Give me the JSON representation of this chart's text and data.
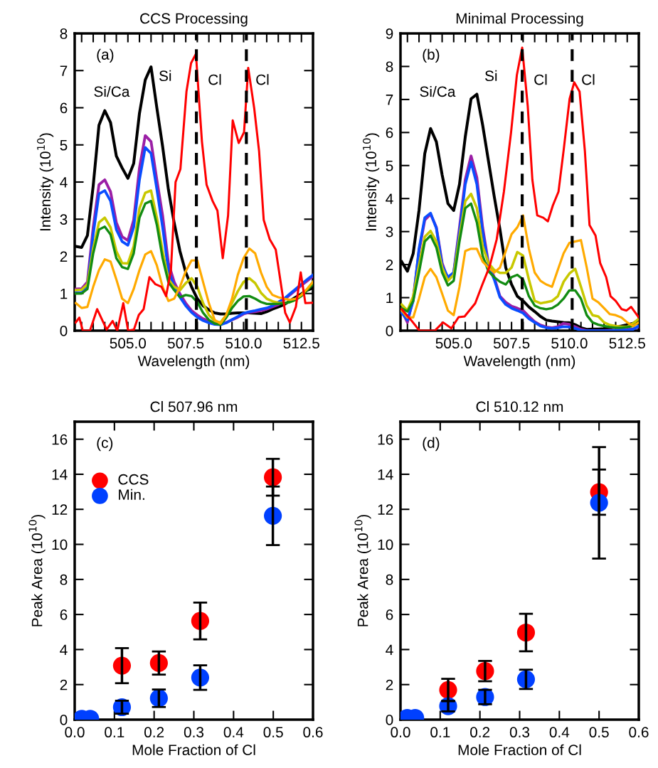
{
  "chart_data": [
    {
      "type": "line",
      "title": "CCS Processing",
      "xlabel": "Wavelength (nm)",
      "ylabel": "Intensity (10$^{10}$)",
      "xlim": [
        502.7,
        513.0
      ],
      "ylim": [
        0,
        8
      ],
      "xticks": [
        {
          "value": 503.0,
          "label": null
        },
        {
          "value": 503.5,
          "label": null
        },
        {
          "value": 504.0,
          "label": null
        },
        {
          "value": 504.5,
          "label": null
        },
        {
          "value": 505.0,
          "label": "505.0"
        },
        {
          "value": 505.5,
          "label": null
        },
        {
          "value": 506.0,
          "label": null
        },
        {
          "value": 506.5,
          "label": null
        },
        {
          "value": 507.0,
          "label": null
        },
        {
          "value": 507.5,
          "label": "507.5"
        },
        {
          "value": 508.0,
          "label": null
        },
        {
          "value": 508.5,
          "label": null
        },
        {
          "value": 509.0,
          "label": null
        },
        {
          "value": 509.5,
          "label": null
        },
        {
          "value": 510.0,
          "label": "510.0"
        },
        {
          "value": 510.5,
          "label": null
        },
        {
          "value": 511.0,
          "label": null
        },
        {
          "value": 511.5,
          "label": null
        },
        {
          "value": 512.0,
          "label": null
        },
        {
          "value": 512.5,
          "label": "512.5"
        }
      ],
      "yticks": [
        0,
        1,
        2,
        3,
        4,
        5,
        6,
        7,
        8
      ],
      "x": [
        502.75,
        503.0,
        503.25,
        503.5,
        503.75,
        504.0,
        504.25,
        504.5,
        504.75,
        505.0,
        505.25,
        505.5,
        505.75,
        506.0,
        506.25,
        506.5,
        506.75,
        507.0,
        507.25,
        507.5,
        507.75,
        508.0,
        508.25,
        508.5,
        508.75,
        509.0,
        509.25,
        509.5,
        509.75,
        510.0,
        510.25,
        510.5,
        510.75,
        511.0,
        511.25,
        511.5,
        511.75,
        512.0,
        512.25,
        512.5,
        512.75,
        513.0
      ],
      "series": [
        {
          "color": "#000000",
          "values": [
            2.27,
            2.24,
            2.56,
            3.9,
            5.53,
            5.92,
            5.6,
            4.7,
            4.38,
            4.1,
            4.5,
            5.85,
            6.75,
            7.1,
            6.0,
            4.96,
            3.8,
            2.9,
            2.14,
            1.57,
            1.18,
            0.86,
            0.67,
            0.56,
            0.48,
            0.45,
            0.45,
            0.47,
            0.48,
            0.48,
            0.48,
            0.47,
            0.46,
            0.51,
            0.58,
            0.64,
            0.7,
            0.8,
            0.9,
            0.99,
            1.09,
            1.15
          ]
        },
        {
          "color": "#9b1fa6",
          "values": [
            1.12,
            1.13,
            1.31,
            2.78,
            3.93,
            4.06,
            3.74,
            2.91,
            2.53,
            2.43,
            2.98,
            4.38,
            5.25,
            5.09,
            4.06,
            3.1,
            1.82,
            1.31,
            0.99,
            0.74,
            0.54,
            0.42,
            0.32,
            0.26,
            0.21,
            0.19,
            0.22,
            0.29,
            0.36,
            0.45,
            0.49,
            0.51,
            0.54,
            0.58,
            0.64,
            0.7,
            0.83,
            0.96,
            1.09,
            1.22,
            1.34,
            1.47
          ]
        },
        {
          "color": "#0a4dff",
          "values": [
            1.02,
            1.02,
            1.18,
            2.59,
            3.68,
            3.77,
            3.49,
            2.72,
            2.4,
            2.3,
            2.78,
            4.06,
            4.93,
            4.77,
            3.81,
            2.78,
            1.63,
            1.18,
            0.9,
            0.67,
            0.49,
            0.36,
            0.27,
            0.21,
            0.17,
            0.16,
            0.21,
            0.3,
            0.38,
            0.47,
            0.51,
            0.54,
            0.58,
            0.61,
            0.67,
            0.77,
            0.86,
            0.99,
            1.12,
            1.25,
            1.38,
            1.5
          ]
        },
        {
          "color": "#c8c800",
          "values": [
            1.09,
            1.1,
            1.25,
            2.21,
            2.91,
            3.04,
            2.78,
            2.14,
            1.82,
            1.81,
            2.27,
            3.29,
            3.71,
            3.77,
            3.04,
            2.14,
            1.38,
            1.18,
            1.09,
            1.28,
            1.41,
            1.18,
            0.74,
            0.42,
            0.26,
            0.22,
            0.42,
            0.74,
            1.06,
            1.31,
            1.41,
            1.28,
            1.02,
            0.86,
            0.79,
            0.75,
            0.74,
            0.77,
            0.83,
            0.96,
            1.12,
            1.31
          ]
        },
        {
          "color": "#128c12",
          "values": [
            1.0,
            1.0,
            1.12,
            2.08,
            2.72,
            2.8,
            2.59,
            1.95,
            1.71,
            1.66,
            2.08,
            3.04,
            3.42,
            3.49,
            2.85,
            1.95,
            1.31,
            1.09,
            0.9,
            0.96,
            0.93,
            0.77,
            0.48,
            0.29,
            0.19,
            0.16,
            0.35,
            0.61,
            0.8,
            0.92,
            0.93,
            0.86,
            0.77,
            0.72,
            0.72,
            0.72,
            0.74,
            0.77,
            0.83,
            0.93,
            1.09,
            1.25
          ]
        },
        {
          "color": "#ffaa00",
          "values": [
            0.74,
            0.61,
            0.64,
            1.18,
            1.63,
            1.92,
            1.86,
            1.38,
            0.86,
            0.74,
            1.12,
            1.63,
            2.05,
            2.14,
            1.76,
            1.18,
            0.8,
            0.86,
            1.18,
            1.6,
            1.89,
            1.89,
            1.31,
            0.74,
            0.29,
            0.19,
            0.42,
            0.86,
            1.5,
            1.95,
            2.21,
            2.08,
            1.57,
            1.18,
            0.96,
            0.9,
            0.86,
            0.83,
            0.86,
            0.96,
            1.12,
            1.31
          ]
        },
        {
          "color": "#ff0000",
          "x": [
            502.74,
            502.9,
            503.05,
            503.36,
            503.67,
            504.08,
            504.34,
            504.54,
            504.8,
            505.01,
            505.26,
            505.47,
            505.68,
            505.93,
            506.19,
            506.45,
            506.65,
            506.86,
            507.06,
            507.27,
            507.53,
            507.73,
            507.94,
            508.2,
            508.4,
            508.66,
            508.87,
            509.1,
            509.33,
            509.53,
            509.79,
            510.02,
            510.2,
            510.46,
            510.67,
            510.87,
            511.13,
            511.39,
            511.64,
            511.8,
            512.0,
            512.26,
            512.47,
            512.67,
            513.0
          ],
          "values": [
            0.22,
            0.35,
            0,
            0,
            0.58,
            0.03,
            0.26,
            0,
            0.74,
            0,
            0.03,
            0.42,
            0.58,
            1.44,
            1.25,
            1.18,
            0.93,
            1.63,
            4.0,
            4.35,
            6.43,
            7.2,
            7.45,
            5.09,
            3.93,
            3.49,
            3.23,
            1.95,
            3.1,
            5.66,
            5.05,
            5.34,
            7.07,
            5.98,
            4.83,
            2.98,
            2.46,
            2.18,
            1.15,
            0.48,
            0.22,
            0.64,
            1.57,
            0.74,
            0.75
          ]
        }
      ],
      "ref_lines": [
        {
          "axis": "x",
          "value": 507.96,
          "color": "#000000",
          "line_style": "dashed"
        },
        {
          "axis": "x",
          "value": 510.12,
          "color": "#000000",
          "line_style": "dashed"
        }
      ],
      "annotations": [
        "(a)",
        "Si/Ca",
        "Si",
        "Cl",
        "Cl"
      ]
    },
    {
      "type": "line",
      "title": "Minimal Processing",
      "xlabel": "Wavelength (nm)",
      "ylabel": "Intensity (10$^{10}$)",
      "xlim": [
        502.7,
        513.0
      ],
      "ylim": [
        0,
        9
      ],
      "xticks": [
        {
          "value": 503.0,
          "label": null
        },
        {
          "value": 503.5,
          "label": null
        },
        {
          "value": 504.0,
          "label": null
        },
        {
          "value": 504.5,
          "label": null
        },
        {
          "value": 505.0,
          "label": "505.0"
        },
        {
          "value": 505.5,
          "label": null
        },
        {
          "value": 506.0,
          "label": null
        },
        {
          "value": 506.5,
          "label": null
        },
        {
          "value": 507.0,
          "label": null
        },
        {
          "value": 507.5,
          "label": "507.5"
        },
        {
          "value": 508.0,
          "label": null
        },
        {
          "value": 508.5,
          "label": null
        },
        {
          "value": 509.0,
          "label": null
        },
        {
          "value": 509.5,
          "label": null
        },
        {
          "value": 510.0,
          "label": "510.0"
        },
        {
          "value": 510.5,
          "label": null
        },
        {
          "value": 511.0,
          "label": null
        },
        {
          "value": 511.5,
          "label": null
        },
        {
          "value": 512.0,
          "label": null
        },
        {
          "value": 512.5,
          "label": "512.5"
        }
      ],
      "yticks": [
        0,
        1,
        2,
        3,
        4,
        5,
        6,
        7,
        8,
        9
      ],
      "x": [
        502.75,
        503.0,
        503.25,
        503.5,
        503.75,
        504.0,
        504.25,
        504.5,
        504.75,
        505.0,
        505.25,
        505.5,
        505.75,
        506.0,
        506.25,
        506.5,
        506.75,
        507.0,
        507.25,
        507.5,
        507.75,
        508.0,
        508.25,
        508.5,
        508.75,
        509.0,
        509.25,
        509.5,
        509.75,
        510.0,
        510.25,
        510.5,
        510.75,
        511.0,
        511.25,
        511.5,
        511.75,
        512.0,
        512.25,
        512.5,
        512.75,
        513.0
      ],
      "series": [
        {
          "color": "#000000",
          "values": [
            2.09,
            1.8,
            2.34,
            3.64,
            5.36,
            6.12,
            5.72,
            4.72,
            3.85,
            3.64,
            4.43,
            5.87,
            7.02,
            7.16,
            6.23,
            5.15,
            4.07,
            3.06,
            1.91,
            1.4,
            1.04,
            0.9,
            0.72,
            0.58,
            0.43,
            0.32,
            0.29,
            0.27,
            0.25,
            0.24,
            0.18,
            0.09,
            0.04,
            0.05,
            0.05,
            0.06,
            0.08,
            0.11,
            0.14,
            0.18,
            0.22,
            0.32
          ]
        },
        {
          "color": "#9b1fa6",
          "values": [
            0.61,
            0.25,
            0.97,
            2.41,
            3.35,
            3.53,
            3.13,
            2.05,
            1.55,
            1.76,
            3.13,
            4.57,
            5.29,
            4.64,
            3.13,
            2.05,
            1.62,
            1.04,
            0.86,
            0.74,
            0.68,
            0.61,
            0.43,
            0.27,
            0.17,
            0.11,
            0.09,
            0.12,
            0.22,
            0.19,
            0.12,
            0.04,
            0,
            0,
            0,
            0,
            0.01,
            0.02,
            0.04,
            0.04,
            0.05,
            0.12
          ]
        },
        {
          "color": "#0a4dff",
          "values": [
            0.54,
            0.32,
            0.9,
            2.48,
            3.42,
            3.56,
            3.1,
            1.98,
            1.62,
            1.76,
            2.99,
            4.43,
            5.11,
            4.43,
            2.99,
            1.98,
            1.55,
            1.01,
            0.79,
            0.68,
            0.61,
            0.53,
            0.36,
            0.25,
            0.14,
            0.09,
            0.07,
            0.09,
            0.12,
            0.11,
            0.07,
            0.01,
            0,
            0,
            0,
            0,
            0,
            0.01,
            0.02,
            0.02,
            0.04,
            0.14
          ]
        },
        {
          "color": "#c8c800",
          "values": [
            0.79,
            0.61,
            1.04,
            1.98,
            2.84,
            3.02,
            2.7,
            1.91,
            1.51,
            1.69,
            2.84,
            3.92,
            4.14,
            3.71,
            2.56,
            2.05,
            1.84,
            1.75,
            1.75,
            1.91,
            2.38,
            2.27,
            1.55,
            0.9,
            0.83,
            0.86,
            0.9,
            1.04,
            1.48,
            1.73,
            1.87,
            1.33,
            0.76,
            0.47,
            0.43,
            0.25,
            0.17,
            0.14,
            0.12,
            0.12,
            0.22,
            0.36
          ]
        },
        {
          "color": "#128c12",
          "values": [
            0.68,
            0.58,
            0.9,
            1.76,
            2.7,
            2.88,
            2.52,
            1.76,
            1.37,
            1.51,
            2.7,
            3.71,
            3.85,
            3.28,
            2.27,
            1.8,
            1.62,
            1.48,
            1.4,
            1.62,
            1.69,
            1.55,
            1.04,
            0.76,
            0.68,
            0.65,
            0.68,
            0.79,
            0.97,
            1.22,
            1.22,
            0.97,
            0.47,
            0.25,
            0.18,
            0.14,
            0.11,
            0.09,
            0.09,
            0.11,
            0.14,
            0.25
          ]
        },
        {
          "color": "#ffaa00",
          "values": [
            0.61,
            0.4,
            0.4,
            0.97,
            1.62,
            1.87,
            1.62,
            1.12,
            0.61,
            0.47,
            1.33,
            2.41,
            2.48,
            2.48,
            2.09,
            1.91,
            1.76,
            1.91,
            2.41,
            2.92,
            3.13,
            3.49,
            2.48,
            1.76,
            1.51,
            1.4,
            1.33,
            1.84,
            2.34,
            2.66,
            2.7,
            2.74,
            1.91,
            0.97,
            0.86,
            0.68,
            0.5,
            0.47,
            0.4,
            0.25,
            0.14,
            0.25
          ]
        },
        {
          "color": "#ff0000",
          "x": [
            502.75,
            503.16,
            503.52,
            503.88,
            504.18,
            504.54,
            504.9,
            505.21,
            505.47,
            505.93,
            506.24,
            506.55,
            506.86,
            507.17,
            507.48,
            507.73,
            507.96,
            508.2,
            508.4,
            508.61,
            508.87,
            509.07,
            509.28,
            509.53,
            509.76,
            510.01,
            510.21,
            510.44,
            510.67,
            510.87,
            511.13,
            511.33,
            511.59,
            511.78,
            512.0,
            512.26,
            512.47,
            512.67,
            513.0
          ],
          "values": [
            0.65,
            0.32,
            0,
            0,
            0,
            0.25,
            0.07,
            0.41,
            0.43,
            0.83,
            1.4,
            1.94,
            2.77,
            4.21,
            6.01,
            7.74,
            8.57,
            6.8,
            4.57,
            3.49,
            3.42,
            3.31,
            3.78,
            4.21,
            5.51,
            7.02,
            7.52,
            7.24,
            5.44,
            3.2,
            2.88,
            2.05,
            1.62,
            1.04,
            0.9,
            0.65,
            0.61,
            0.72,
            0.4
          ]
        }
      ],
      "ref_lines": [
        {
          "axis": "x",
          "value": 507.96,
          "color": "#000000",
          "line_style": "dashed"
        },
        {
          "axis": "x",
          "value": 510.12,
          "color": "#000000",
          "line_style": "dashed"
        }
      ],
      "annotations": [
        "(b)",
        "Si/Ca",
        "Si",
        "Cl",
        "Cl"
      ]
    },
    {
      "type": "scatter",
      "title": "Cl 507.96 nm",
      "xlabel": "Mole Fraction of Cl",
      "ylabel": "Peak Area (10$^{10}$)",
      "xlim": [
        0,
        0.6
      ],
      "ylim": [
        0,
        17
      ],
      "xticks": [
        {
          "value": 0,
          "label": "0.0"
        },
        0.1,
        0.2,
        0.3,
        0.4,
        0.5,
        0.6
      ],
      "yticks": [
        0,
        2,
        4,
        6,
        8,
        10,
        12,
        14,
        16
      ],
      "marker": "circle",
      "legend": "top left",
      "series": [
        {
          "name": "CCS",
          "color": "#ff0000",
          "x": [
            0.119,
            0.212,
            0.316,
            0.499
          ],
          "values": [
            3.08,
            3.23,
            5.63,
            13.83
          ],
          "errors": [
            1.0,
            0.66,
            1.05,
            1.05
          ]
        },
        {
          "name": "Min.",
          "color": "#0040ff",
          "x": [
            0.018,
            0.039,
            0.119,
            0.212,
            0.316,
            0.499
          ],
          "values": [
            0.05,
            0.05,
            0.71,
            1.22,
            2.4,
            11.63
          ],
          "errors": [
            null,
            null,
            0.37,
            0.5,
            0.7,
            1.67
          ]
        }
      ],
      "annotations": [
        "(c)"
      ]
    },
    {
      "type": "scatter",
      "title": "Cl 510.12 nm",
      "xlabel": "Mole Fraction of Cl",
      "ylabel": "Peak Area (10$^{10}$)",
      "xlim": [
        0,
        0.6
      ],
      "ylim": [
        0,
        17
      ],
      "xticks": [
        {
          "value": 0,
          "label": "0.0"
        },
        0.1,
        0.2,
        0.3,
        0.4,
        0.5,
        0.6
      ],
      "yticks": [
        0,
        2,
        4,
        6,
        8,
        10,
        12,
        14,
        16
      ],
      "marker": "circle",
      "series": [
        {
          "color": "#ff0000",
          "x": [
            0.12,
            0.213,
            0.316,
            0.5
          ],
          "values": [
            1.69,
            2.77,
            4.97,
            12.98
          ],
          "errors": [
            0.64,
            0.58,
            1.07,
            1.29
          ]
        },
        {
          "color": "#0040ff",
          "x": [
            0.017,
            0.037,
            0.12,
            0.213,
            0.316,
            0.5
          ],
          "values": [
            0.1,
            0.1,
            0.77,
            1.29,
            2.3,
            12.37
          ],
          "errors": [
            null,
            null,
            0.3,
            0.41,
            0.55,
            3.18
          ]
        }
      ],
      "annotations": [
        "(d)"
      ]
    }
  ]
}
